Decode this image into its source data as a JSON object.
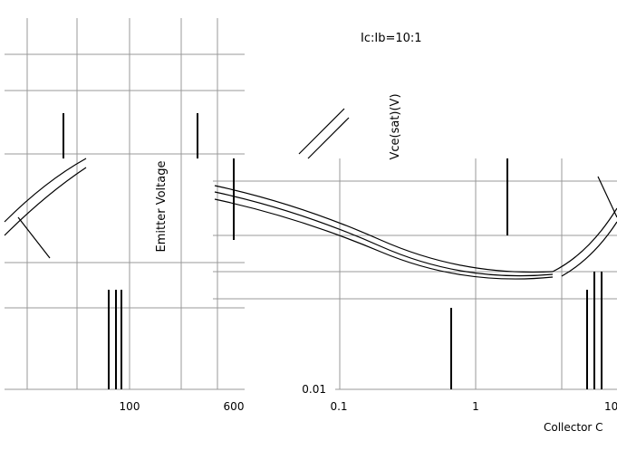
{
  "labels": {
    "ratio": "Ic:Ib=10:1",
    "y_axis": "Vce(sat)(V)",
    "left_axis": "Emitter Voltage",
    "bottom_partial": "Collector C"
  },
  "left_x_ticks": [
    "100",
    "600"
  ],
  "right_x_ticks": [
    "0.1",
    "1",
    "10"
  ],
  "right_y_ticks": [
    "0.01"
  ]
}
